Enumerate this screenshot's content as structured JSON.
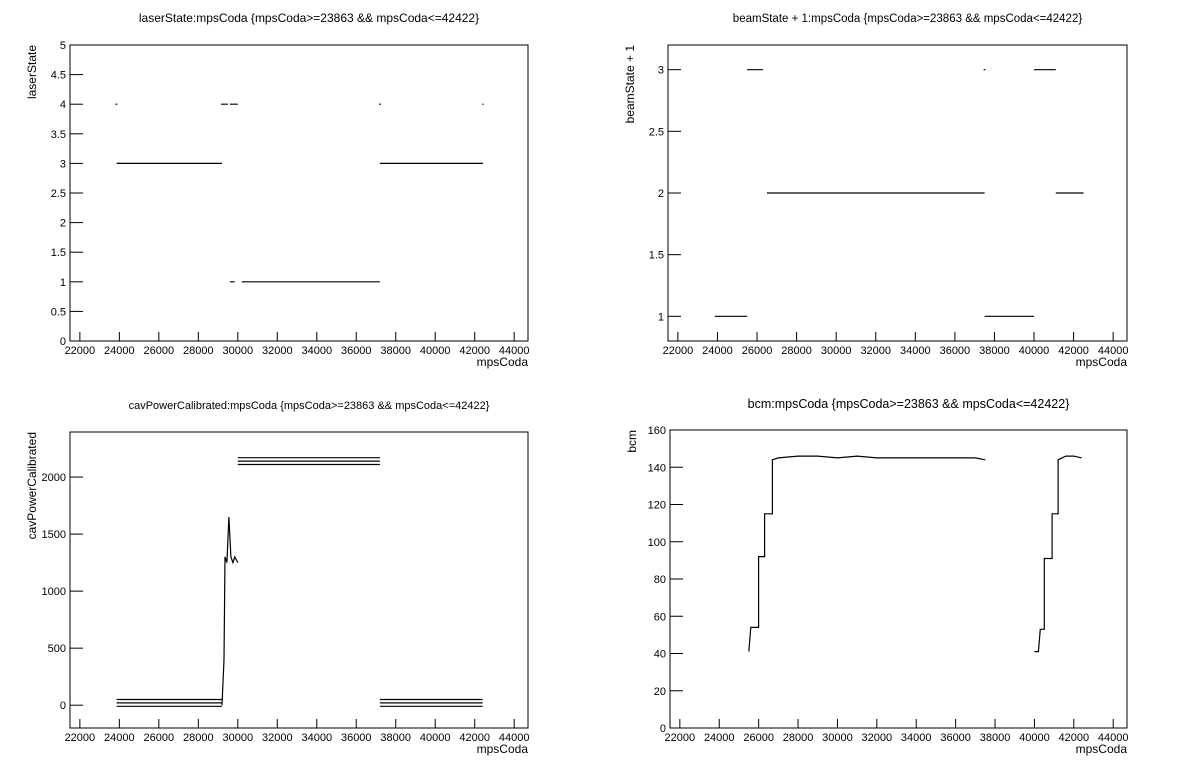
{
  "chart_data": [
    {
      "type": "line",
      "title": "laserState:mpsCoda {mpsCoda>=23863 && mpsCoda<=42422}",
      "x_label": "mpsCoda",
      "y_label": "laserState",
      "color": "#000000",
      "x": [
        23800,
        23900,
        null,
        23863,
        29200,
        null,
        29150,
        29500,
        null,
        29600,
        30000,
        null,
        29600,
        29850,
        null,
        30200,
        37200,
        null,
        37150,
        37250,
        null,
        37200,
        42422,
        null,
        42380,
        42450
      ],
      "values": [
        4,
        4,
        null,
        3,
        3,
        null,
        4,
        4,
        null,
        4,
        4,
        null,
        1,
        1,
        null,
        1,
        1,
        null,
        4,
        4,
        null,
        3,
        3,
        null,
        4,
        4
      ],
      "xlim": [
        21500,
        44700
      ],
      "xticks": [
        22000,
        24000,
        26000,
        28000,
        30000,
        32000,
        34000,
        36000,
        38000,
        40000,
        42000,
        44000
      ],
      "ylim": [
        0,
        5
      ],
      "yticks": [
        0,
        0.5,
        1,
        1.5,
        2,
        2.5,
        3,
        3.5,
        4,
        4.5,
        5
      ]
    },
    {
      "type": "line",
      "title": "beamState + 1:mpsCoda {mpsCoda>=23863 && mpsCoda<=42422}",
      "x_label": "mpsCoda",
      "y_label": "beamState + 1",
      "color": "#000000",
      "x": [
        23863,
        25500,
        null,
        25500,
        26300,
        null,
        26500,
        37500,
        null,
        37450,
        37550,
        null,
        37500,
        40000,
        null,
        40000,
        41100,
        null,
        41100,
        42500
      ],
      "values": [
        1,
        1,
        null,
        3,
        3,
        null,
        2,
        2,
        null,
        3,
        3,
        null,
        1,
        1,
        null,
        3,
        3,
        null,
        2,
        2
      ],
      "xlim": [
        21500,
        44700
      ],
      "xticks": [
        22000,
        24000,
        26000,
        28000,
        30000,
        32000,
        34000,
        36000,
        38000,
        40000,
        42000,
        44000
      ],
      "ylim": [
        0.8,
        3.2
      ],
      "yticks": [
        1,
        1.5,
        2,
        2.5,
        3
      ]
    },
    {
      "type": "line",
      "title": "cavPowerCalibrated:mpsCoda {mpsCoda>=23863 && mpsCoda<=42422}",
      "x_label": "mpsCoda",
      "y_label": "cavPowerCalibrated",
      "color": "#000000",
      "x": [
        23863,
        29200,
        null,
        23863,
        29200,
        null,
        23863,
        29200,
        null,
        29200,
        29300,
        29350,
        29450,
        29550,
        29650,
        29750,
        29850,
        30000,
        null,
        30000,
        37200,
        null,
        30000,
        37200,
        null,
        30000,
        37200,
        null,
        37200,
        42400,
        null,
        37200,
        42400,
        null,
        37200,
        42400
      ],
      "values": [
        50,
        50,
        null,
        20,
        20,
        null,
        -10,
        -10,
        null,
        0,
        400,
        1300,
        1250,
        1650,
        1300,
        1250,
        1300,
        1250,
        null,
        2170,
        2170,
        null,
        2140,
        2140,
        null,
        2110,
        2110,
        null,
        50,
        50,
        null,
        20,
        20,
        null,
        -10,
        -10
      ],
      "xlim": [
        21500,
        44700
      ],
      "xticks": [
        22000,
        24000,
        26000,
        28000,
        30000,
        32000,
        34000,
        36000,
        38000,
        40000,
        42000,
        44000
      ],
      "ylim": [
        -200,
        2395
      ],
      "yticks": [
        0,
        500,
        1000,
        1500,
        2000
      ]
    },
    {
      "type": "line",
      "title": "bcm:mpsCoda {mpsCoda>=23863 && mpsCoda<=42422}",
      "x_label": "mpsCoda",
      "y_label": "bcm",
      "color": "#000000",
      "x": [
        25500,
        25600,
        25700,
        26000,
        26000,
        26300,
        26300,
        26700,
        26700,
        27000,
        28000,
        29000,
        30000,
        31000,
        32000,
        33000,
        34000,
        35000,
        36000,
        37000,
        37500,
        null,
        40000,
        40200,
        40300,
        40500,
        40500,
        40900,
        40900,
        41200,
        41200,
        41600,
        42000,
        42400
      ],
      "values": [
        41,
        54,
        54,
        54,
        92,
        92,
        115,
        115,
        144,
        145,
        146,
        146,
        145,
        146,
        145,
        145,
        145,
        145,
        145,
        145,
        144,
        null,
        41,
        41,
        53,
        53,
        91,
        91,
        115,
        115,
        144,
        146,
        146,
        145
      ],
      "xlim": [
        21500,
        44700
      ],
      "xticks": [
        22000,
        24000,
        26000,
        28000,
        30000,
        32000,
        34000,
        36000,
        38000,
        40000,
        42000,
        44000
      ],
      "ylim": [
        0,
        160
      ],
      "yticks": [
        0,
        20,
        40,
        60,
        80,
        100,
        120,
        140,
        160
      ]
    }
  ]
}
